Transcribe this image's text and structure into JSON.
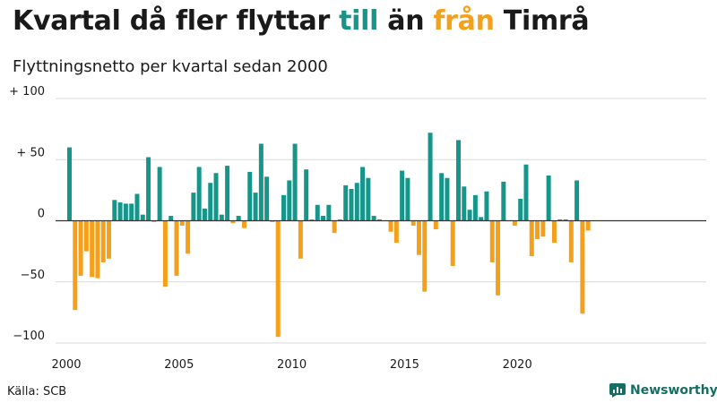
{
  "title": {
    "part1": "Kvartal då fler flyttar ",
    "pos_word": "till",
    "part2": " än ",
    "neg_word": "från",
    "part3": " Timrå"
  },
  "subtitle": "Flyttningsnetto per kvartal sedan 2000",
  "source": "Källa: SCB",
  "brand": {
    "name": "Newsworthy",
    "logo_icon": "chart-bubble-icon"
  },
  "colors": {
    "positive": "#16968a",
    "negative": "#f5a01a",
    "grid": "#d9d9d9",
    "baseline": "#333333",
    "brand": "#146e64"
  },
  "chart_data": {
    "type": "bar",
    "title": "Kvartal då fler flyttar till än från Timrå",
    "subtitle": "Flyttningsnetto per kvartal sedan 2000",
    "x_start": "2000 Q1",
    "x_ticks": [
      2000,
      2005,
      2010,
      2015,
      2020
    ],
    "y_ticks": [
      {
        "value": 100,
        "label": "+ 100"
      },
      {
        "value": 50,
        "label": "+  50"
      },
      {
        "value": 0,
        "label": "0"
      },
      {
        "value": -50,
        "label": "−50"
      },
      {
        "value": -100,
        "label": "−100"
      }
    ],
    "ylim": [
      -100,
      100
    ],
    "grid": true,
    "values": [
      60,
      -73,
      -45,
      -25,
      -46,
      -47,
      -34,
      -31,
      17,
      15,
      14,
      14,
      22,
      5,
      52,
      -1,
      44,
      -54,
      4,
      -45,
      -4,
      -27,
      23,
      44,
      10,
      31,
      39,
      5,
      45,
      -2,
      4,
      -6,
      40,
      23,
      63,
      36,
      -1,
      -95,
      21,
      33,
      63,
      -31,
      42,
      1,
      13,
      4,
      13,
      -10,
      1,
      29,
      26,
      31,
      44,
      35,
      4,
      1,
      0,
      -9,
      -18,
      41,
      35,
      -4,
      -28,
      -58,
      72,
      -7,
      39,
      35,
      -37,
      66,
      28,
      9,
      21,
      3,
      24,
      -34,
      -61,
      32,
      0,
      -4,
      18,
      46,
      -29,
      -15,
      -13,
      37,
      -18,
      1,
      1,
      -34,
      33,
      -76,
      -8
    ]
  }
}
